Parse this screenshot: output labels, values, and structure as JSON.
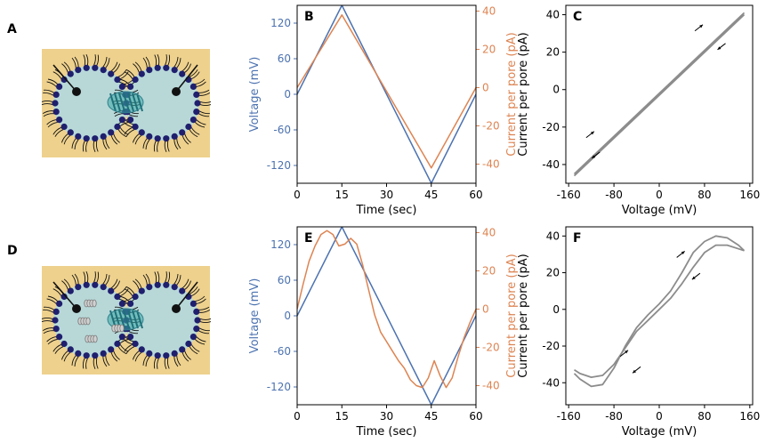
{
  "panel_labels": {
    "A": "A",
    "B": "B",
    "C": "C",
    "D": "D",
    "E": "E",
    "F": "F"
  },
  "colors": {
    "voltage": "#4c72b0",
    "current": "#dd8452",
    "iv": "#8c8c8c",
    "schematic_bg": "#eed18d",
    "droplet": "#b8d8d8",
    "lipid_head": "#1f1f6e",
    "pore": "#3aa8a8",
    "peptide": "#d0d0d0"
  },
  "chart_data": [
    {
      "panel": "B",
      "type": "line",
      "xlabel": "Time (sec)",
      "ylabel": "Voltage (mV)",
      "y2label": "Current per pore (pA)",
      "xlim": [
        0,
        60
      ],
      "ylim": [
        -150,
        150
      ],
      "y2lim": [
        -50,
        43
      ],
      "xticks": [
        0,
        15,
        30,
        45,
        60
      ],
      "yticks": [
        -120,
        -60,
        0,
        60,
        120
      ],
      "y2ticks": [
        -40,
        -20,
        0,
        20,
        40
      ],
      "series": [
        {
          "axis": "left",
          "color": "voltage",
          "x": [
            0,
            15,
            45,
            60
          ],
          "y": [
            0,
            150,
            -150,
            0
          ]
        },
        {
          "axis": "right",
          "color": "current",
          "x": [
            0,
            15,
            45,
            60
          ],
          "y": [
            0,
            38,
            -42,
            0
          ]
        }
      ]
    },
    {
      "panel": "C",
      "type": "line",
      "xlabel": "Voltage (mV)",
      "ylabel": "Current per pore (pA)",
      "xlim": [
        -165,
        165
      ],
      "ylim": [
        -50,
        45
      ],
      "xticks": [
        -160,
        -80,
        0,
        80,
        160
      ],
      "yticks": [
        -40,
        -20,
        0,
        20,
        40
      ],
      "series": [
        {
          "color": "iv",
          "x": [
            -150,
            150
          ],
          "y": [
            -46,
            40
          ]
        },
        {
          "color": "iv",
          "x": [
            -150,
            150
          ],
          "y": [
            -45,
            41
          ]
        }
      ],
      "arrows": [
        {
          "x": -122,
          "y": -24,
          "dir": "up"
        },
        {
          "x": -112,
          "y": -35,
          "dir": "down"
        },
        {
          "x": 70,
          "y": 33,
          "dir": "up"
        },
        {
          "x": 110,
          "y": 23,
          "dir": "down"
        }
      ]
    },
    {
      "panel": "E",
      "type": "line",
      "xlabel": "Time (sec)",
      "ylabel": "Voltage (mV)",
      "y2label": "Current per pore (pA)",
      "xlim": [
        0,
        60
      ],
      "ylim": [
        -150,
        150
      ],
      "y2lim": [
        -50,
        43
      ],
      "xticks": [
        0,
        15,
        30,
        45,
        60
      ],
      "yticks": [
        -120,
        -60,
        0,
        60,
        120
      ],
      "y2ticks": [
        -40,
        -20,
        0,
        20,
        40
      ],
      "series": [
        {
          "axis": "left",
          "color": "voltage",
          "x": [
            0,
            15,
            45,
            60
          ],
          "y": [
            0,
            150,
            -150,
            0
          ]
        },
        {
          "axis": "right",
          "color": "current",
          "x": [
            0,
            2,
            4,
            6,
            8,
            10,
            12,
            14,
            16,
            18,
            20,
            22,
            24,
            26,
            28,
            30,
            32,
            34,
            36,
            38,
            40,
            42,
            44,
            46,
            48,
            50,
            52,
            54,
            56,
            58,
            60
          ],
          "y": [
            0,
            13,
            25,
            33,
            39,
            41,
            39,
            33,
            34,
            37,
            34,
            23,
            10,
            -3,
            -12,
            -17,
            -22,
            -27,
            -31,
            -37,
            -40,
            -41,
            -36,
            -27,
            -35,
            -41,
            -36,
            -25,
            -15,
            -7,
            0
          ]
        }
      ]
    },
    {
      "panel": "F",
      "type": "line",
      "xlabel": "Voltage (mV)",
      "ylabel": "Current per pore (pA)",
      "xlim": [
        -165,
        165
      ],
      "ylim": [
        -52,
        45
      ],
      "xticks": [
        -160,
        -80,
        0,
        80,
        160
      ],
      "yticks": [
        -40,
        -20,
        0,
        20,
        40
      ],
      "series": [
        {
          "color": "iv",
          "x": [
            -150,
            -140,
            -120,
            -100,
            -80,
            -60,
            -40,
            -20,
            0,
            20,
            40,
            60,
            80,
            100,
            120,
            140,
            150
          ],
          "y": [
            -35,
            -38,
            -42,
            -41,
            -32,
            -20,
            -10,
            -3,
            3,
            10,
            20,
            31,
            37,
            40,
            39,
            35,
            32
          ]
        },
        {
          "color": "iv",
          "x": [
            -150,
            -140,
            -120,
            -100,
            -80,
            -60,
            -40,
            -20,
            0,
            20,
            40,
            60,
            80,
            100,
            120,
            140,
            150
          ],
          "y": [
            -33,
            -35,
            -37,
            -36,
            -30,
            -21,
            -12,
            -6,
            0,
            6,
            14,
            23,
            31,
            35,
            35,
            33,
            32
          ]
        }
      ],
      "arrows": [
        {
          "x": -62,
          "y": -24,
          "dir": "up"
        },
        {
          "x": -40,
          "y": -33,
          "dir": "down"
        },
        {
          "x": 38,
          "y": 30,
          "dir": "up"
        },
        {
          "x": 65,
          "y": 18,
          "dir": "down"
        }
      ]
    }
  ]
}
